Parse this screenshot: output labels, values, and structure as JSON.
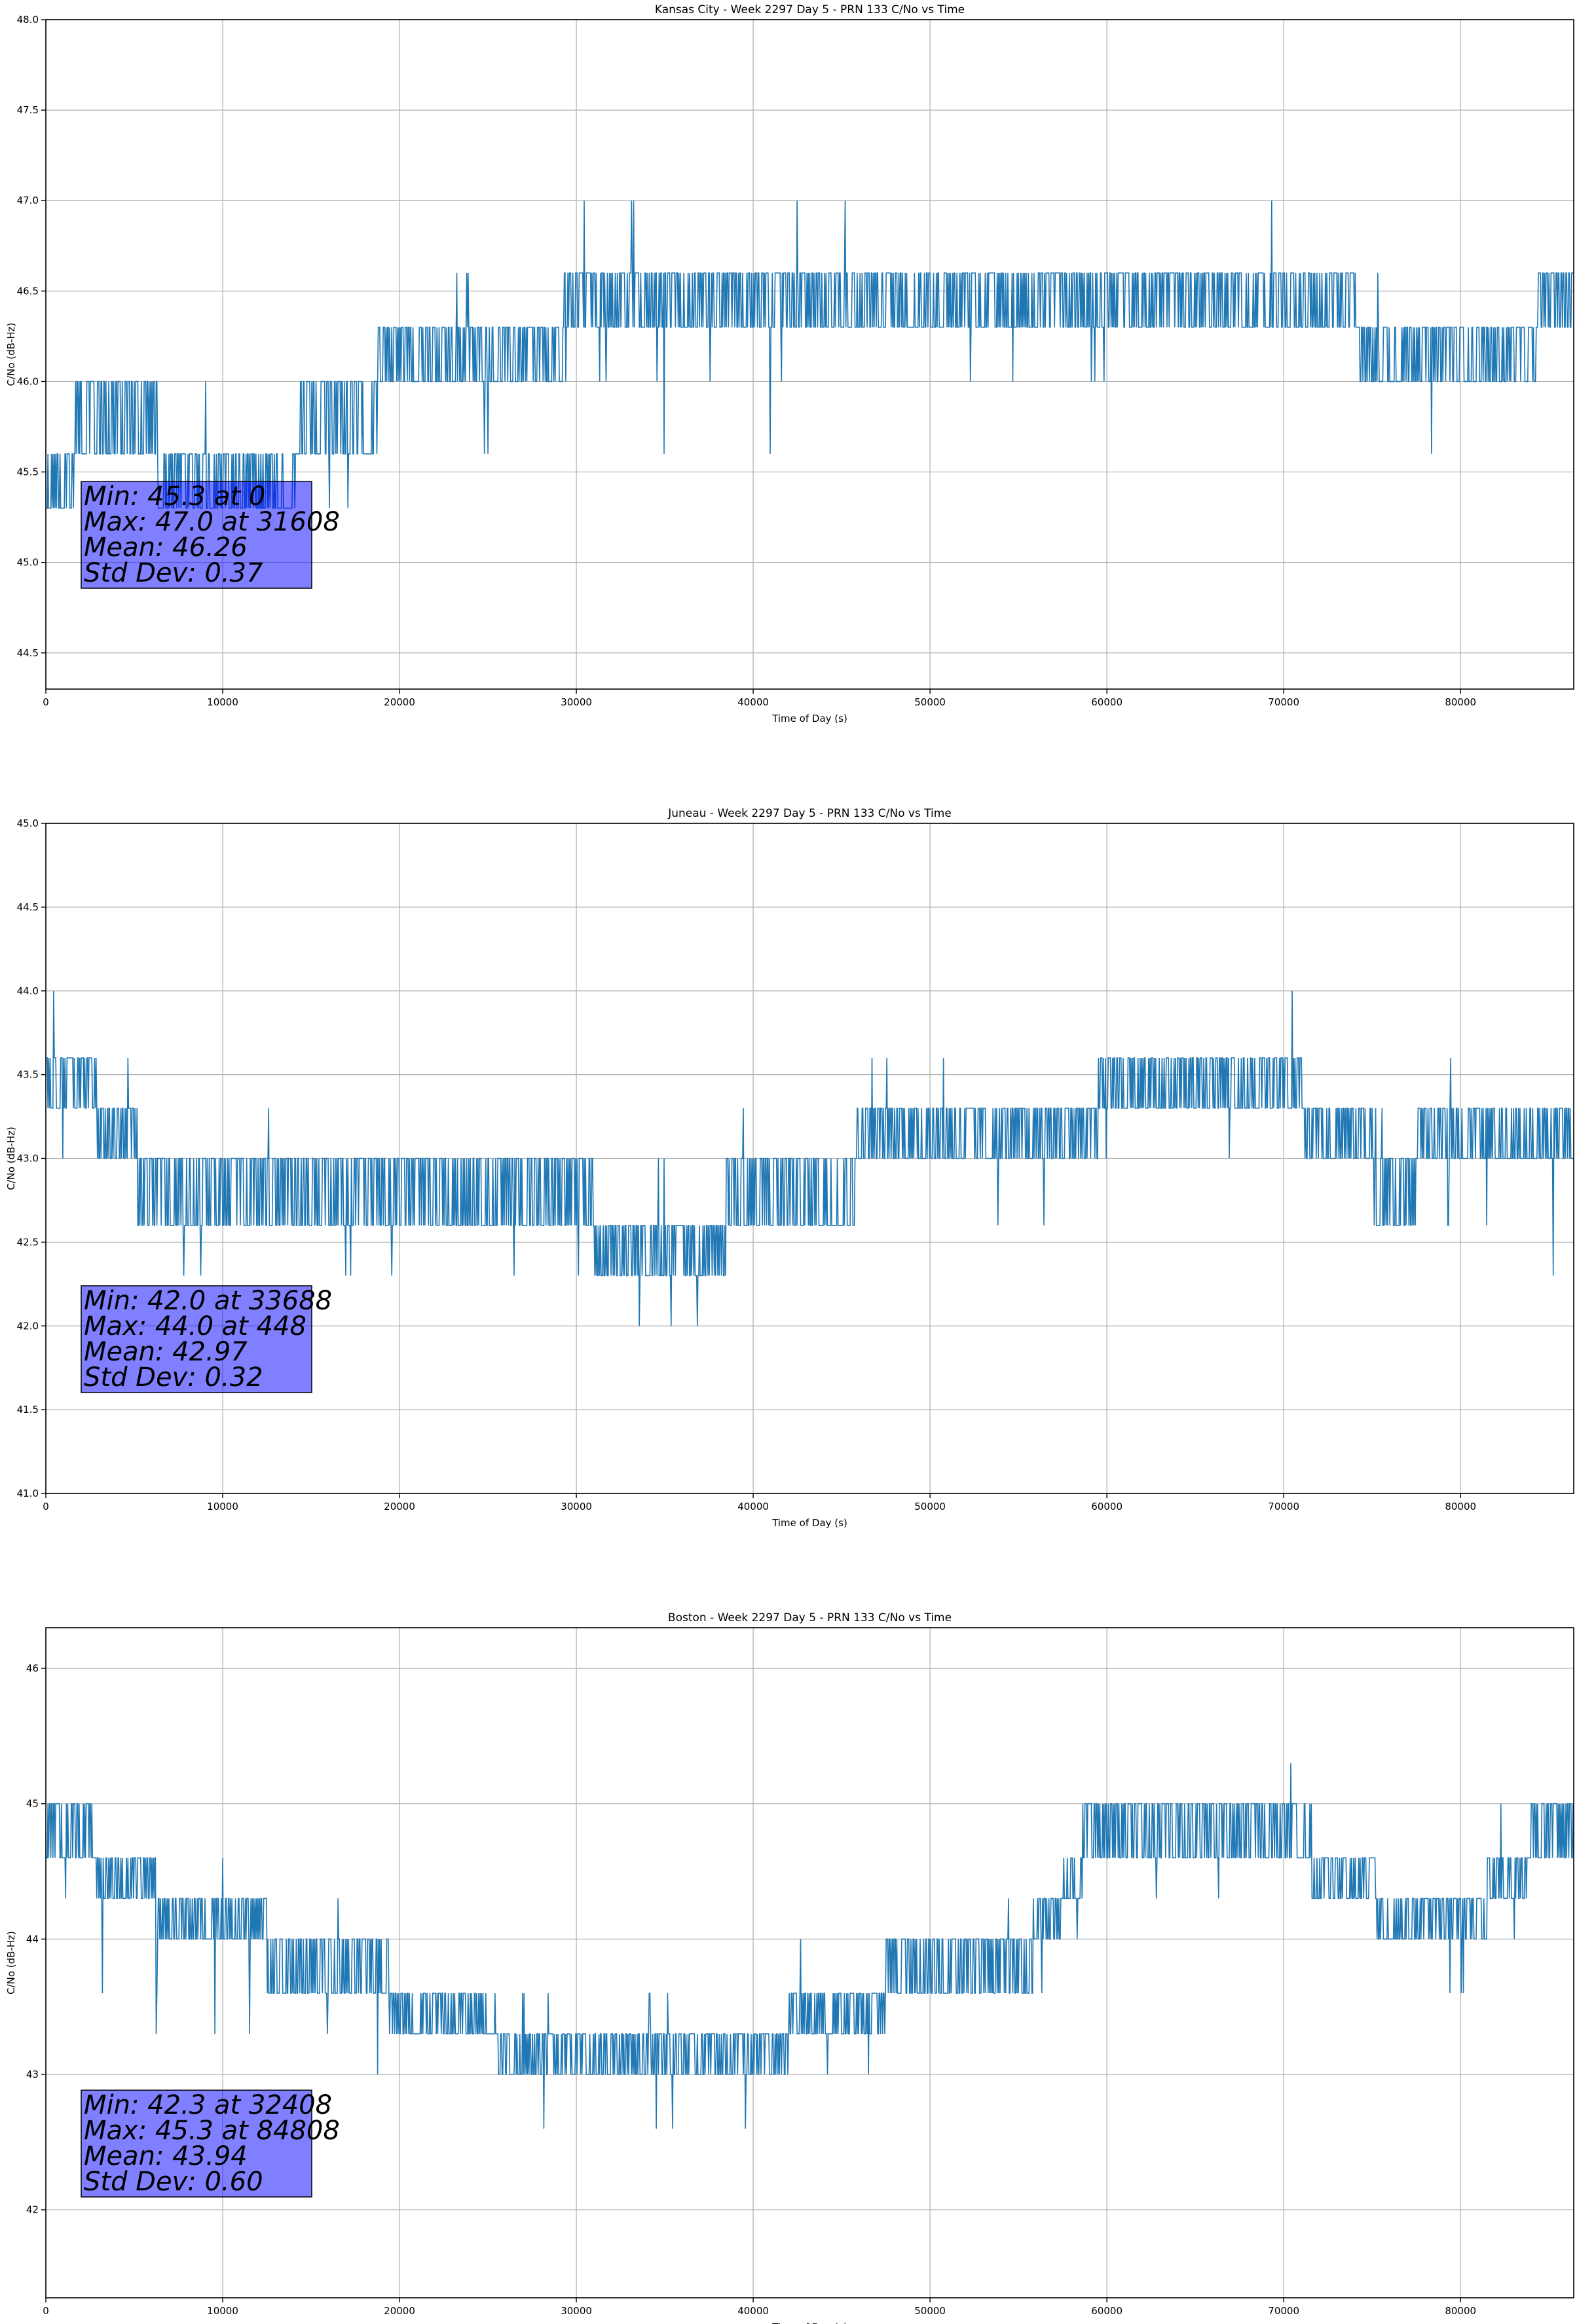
{
  "figure": {
    "background": "#ffffff",
    "series_color": "#1f77b4",
    "stats_box_color": "#0000ff"
  },
  "chart_data": [
    {
      "type": "line",
      "title": "Kansas City - Week 2297 Day 5 - PRN 133 C/No vs Time",
      "xlabel": "Time of Day (s)",
      "ylabel": "C/No (dB-Hz)",
      "xlim": [
        0,
        86400
      ],
      "ylim": [
        44.3,
        48.0
      ],
      "xticks": [
        0,
        10000,
        20000,
        30000,
        40000,
        50000,
        60000,
        70000,
        80000
      ],
      "yticks": [
        44.5,
        45.0,
        45.5,
        46.0,
        46.5,
        47.0,
        47.5,
        48.0
      ],
      "ytick_labels": [
        "44.5",
        "45.0",
        "45.5",
        "46.0",
        "46.5",
        "47.0",
        "47.5",
        "48.0"
      ],
      "grid": true,
      "quant_levels": [
        45.3,
        45.6,
        46.0,
        46.3,
        46.6,
        47.0
      ],
      "trend_x": [
        0,
        1500,
        2000,
        6000,
        6500,
        14000,
        14500,
        22000,
        29000,
        29500,
        40000,
        60000,
        70000,
        74000,
        74500,
        84000,
        84500,
        86400
      ],
      "trend_y": [
        45.45,
        45.5,
        45.8,
        45.8,
        45.45,
        45.45,
        45.8,
        46.15,
        46.15,
        46.45,
        46.5,
        46.5,
        46.45,
        46.45,
        46.15,
        46.15,
        46.45,
        46.5
      ],
      "stats": [
        "Min: 45.3 at 0",
        "Max: 47.0 at 31608",
        "Mean: 46.26",
        "Std Dev: 0.37"
      ]
    },
    {
      "type": "line",
      "title": "Juneau - Week 2297 Day 5 - PRN 133 C/No vs Time",
      "xlabel": "Time of Day (s)",
      "ylabel": "C/No (dB-Hz)",
      "xlim": [
        0,
        86400
      ],
      "ylim": [
        41.0,
        45.0
      ],
      "xticks": [
        0,
        10000,
        20000,
        30000,
        40000,
        50000,
        60000,
        70000,
        80000
      ],
      "yticks": [
        41.0,
        41.5,
        42.0,
        42.5,
        43.0,
        43.5,
        44.0,
        44.5,
        45.0
      ],
      "ytick_labels": [
        "41.0",
        "41.5",
        "42.0",
        "42.5",
        "43.0",
        "43.5",
        "44.0",
        "44.5",
        "45.0"
      ],
      "grid": true,
      "quant_levels": [
        42.0,
        42.3,
        42.6,
        43.0,
        43.3,
        43.6,
        44.0
      ],
      "trend_x": [
        0,
        2700,
        3000,
        5000,
        5500,
        10000,
        20000,
        27000,
        32000,
        38000,
        40000,
        45500,
        46000,
        50000,
        59000,
        60000,
        70000,
        72000,
        74000,
        76000,
        80000,
        86400
      ],
      "trend_y": [
        43.45,
        43.45,
        43.15,
        43.1,
        42.8,
        42.8,
        42.8,
        42.8,
        42.55,
        42.55,
        42.8,
        42.8,
        43.1,
        43.15,
        43.15,
        43.45,
        43.45,
        43.15,
        43.15,
        42.9,
        43.15,
        43.15
      ],
      "stats": [
        "Min: 42.0 at 33688",
        "Max: 44.0 at 448",
        "Mean: 42.97",
        "Std Dev: 0.32"
      ]
    },
    {
      "type": "line",
      "title": "Boston - Week 2297 Day 5 - PRN 133 C/No vs Time",
      "xlabel": "Time of Day (s)",
      "ylabel": "C/No (dB-Hz)",
      "xlim": [
        0,
        86400
      ],
      "ylim": [
        41.35,
        46.3
      ],
      "xticks": [
        0,
        10000,
        20000,
        30000,
        40000,
        50000,
        60000,
        70000,
        80000
      ],
      "yticks": [
        42,
        43,
        44,
        45,
        46
      ],
      "ytick_labels": [
        "42",
        "43",
        "44",
        "45",
        "46"
      ],
      "grid": true,
      "quant_levels": [
        42.3,
        42.6,
        43.0,
        43.3,
        43.6,
        44.0,
        44.3,
        44.6,
        45.0,
        45.3
      ],
      "trend_x": [
        0,
        2500,
        3000,
        6000,
        6500,
        10000,
        15000,
        19000,
        20000,
        25000,
        26000,
        39000,
        40000,
        44000,
        45000,
        50000,
        55000,
        58000,
        59000,
        71000,
        72000,
        75000,
        75500,
        81000,
        82000,
        86400
      ],
      "trend_y": [
        44.8,
        44.75,
        44.45,
        44.4,
        44.15,
        44.15,
        43.85,
        43.7,
        43.45,
        43.4,
        43.15,
        43.15,
        43.2,
        43.4,
        43.45,
        43.75,
        43.85,
        44.4,
        44.8,
        44.8,
        44.45,
        44.45,
        44.15,
        44.15,
        44.45,
        44.8
      ],
      "stats": [
        "Min: 42.3 at 32408",
        "Max: 45.3 at 84808",
        "Mean: 43.94",
        "Std Dev: 0.60"
      ]
    }
  ]
}
